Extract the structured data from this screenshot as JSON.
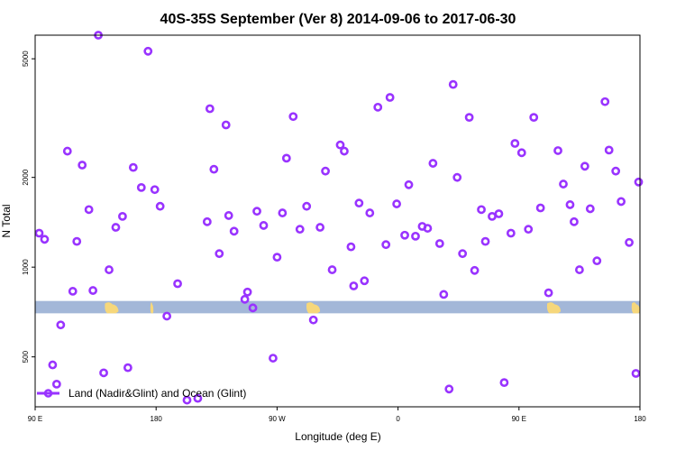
{
  "chart_data": {
    "type": "scatter",
    "title": "40S-35S September (Ver 8)   2014-09-06 to 2017-06-30",
    "xlabel": "Longitude (deg E)",
    "ylabel": "N Total",
    "y_scale": "log",
    "xlim": [
      90,
      540
    ],
    "ylim": [
      340,
      6000
    ],
    "x_tick_positions": [
      90,
      180,
      270,
      360,
      450,
      540
    ],
    "x_tick_labels": [
      "90 E",
      "180",
      "90 W",
      "0",
      "90 E",
      "180"
    ],
    "y_ticks": [
      500,
      1000,
      2000,
      5000
    ],
    "y_tick_labels": [
      "500",
      "1000",
      "2000",
      "5000"
    ],
    "legend": {
      "label": "Land (Nadir&Glint) and Ocean (Glint)",
      "position": "bottom-left"
    },
    "land_band": {
      "y_range": [
        700,
        770
      ],
      "color": "#a3b7d8",
      "land_color": "#f6d77b"
    },
    "land_blobs": [
      {
        "x_range": [
          142,
          152
        ]
      },
      {
        "x_range": [
          176,
          178
        ]
      },
      {
        "x_range": [
          292,
          302
        ]
      },
      {
        "x_range": [
          471,
          481
        ]
      },
      {
        "x_range": [
          534,
          540
        ]
      }
    ],
    "series": [
      {
        "color": "#9933ff",
        "marker": "open-circle",
        "points": [
          [
            93,
            1300
          ],
          [
            97,
            1240
          ],
          [
            103,
            470
          ],
          [
            106,
            405
          ],
          [
            109,
            640
          ],
          [
            114,
            2450
          ],
          [
            118,
            830
          ],
          [
            121,
            1220
          ],
          [
            125,
            2200
          ],
          [
            130,
            1560
          ],
          [
            133,
            835
          ],
          [
            137,
            6000
          ],
          [
            141,
            442
          ],
          [
            145,
            980
          ],
          [
            150,
            1360
          ],
          [
            155,
            1480
          ],
          [
            159,
            460
          ],
          [
            163,
            2160
          ],
          [
            169,
            1850
          ],
          [
            174,
            5300
          ],
          [
            179,
            1820
          ],
          [
            183,
            1600
          ],
          [
            188,
            685
          ],
          [
            196,
            880
          ],
          [
            203,
            358
          ],
          [
            211,
            363
          ],
          [
            218,
            1420
          ],
          [
            220,
            3400
          ],
          [
            223,
            2130
          ],
          [
            227,
            1110
          ],
          [
            232,
            3000
          ],
          [
            234,
            1490
          ],
          [
            238,
            1320
          ],
          [
            246,
            780
          ],
          [
            248,
            825
          ],
          [
            252,
            730
          ],
          [
            255,
            1540
          ],
          [
            260,
            1380
          ],
          [
            267,
            495
          ],
          [
            270,
            1080
          ],
          [
            274,
            1520
          ],
          [
            277,
            2320
          ],
          [
            282,
            3200
          ],
          [
            287,
            1340
          ],
          [
            292,
            1600
          ],
          [
            297,
            665
          ],
          [
            302,
            1360
          ],
          [
            306,
            2100
          ],
          [
            311,
            980
          ],
          [
            317,
            2570
          ],
          [
            320,
            2450
          ],
          [
            325,
            1170
          ],
          [
            327,
            865
          ],
          [
            331,
            1640
          ],
          [
            335,
            900
          ],
          [
            339,
            1520
          ],
          [
            345,
            3440
          ],
          [
            351,
            1190
          ],
          [
            354,
            3710
          ],
          [
            359,
            1630
          ],
          [
            365,
            1280
          ],
          [
            368,
            1890
          ],
          [
            373,
            1270
          ],
          [
            378,
            1370
          ],
          [
            382,
            1350
          ],
          [
            386,
            2230
          ],
          [
            391,
            1200
          ],
          [
            394,
            810
          ],
          [
            398,
            390
          ],
          [
            401,
            4100
          ],
          [
            404,
            2000
          ],
          [
            408,
            1110
          ],
          [
            413,
            3180
          ],
          [
            417,
            975
          ],
          [
            422,
            1560
          ],
          [
            425,
            1220
          ],
          [
            430,
            1480
          ],
          [
            435,
            1510
          ],
          [
            439,
            410
          ],
          [
            444,
            1300
          ],
          [
            447,
            2600
          ],
          [
            452,
            2420
          ],
          [
            457,
            1340
          ],
          [
            461,
            3180
          ],
          [
            466,
            1580
          ],
          [
            472,
            820
          ],
          [
            479,
            2460
          ],
          [
            483,
            1900
          ],
          [
            488,
            1620
          ],
          [
            491,
            1420
          ],
          [
            495,
            980
          ],
          [
            499,
            2180
          ],
          [
            503,
            1570
          ],
          [
            508,
            1050
          ],
          [
            514,
            3590
          ],
          [
            517,
            2470
          ],
          [
            522,
            2100
          ],
          [
            526,
            1660
          ],
          [
            532,
            1210
          ],
          [
            537,
            440
          ],
          [
            539,
            1930
          ]
        ]
      }
    ]
  }
}
